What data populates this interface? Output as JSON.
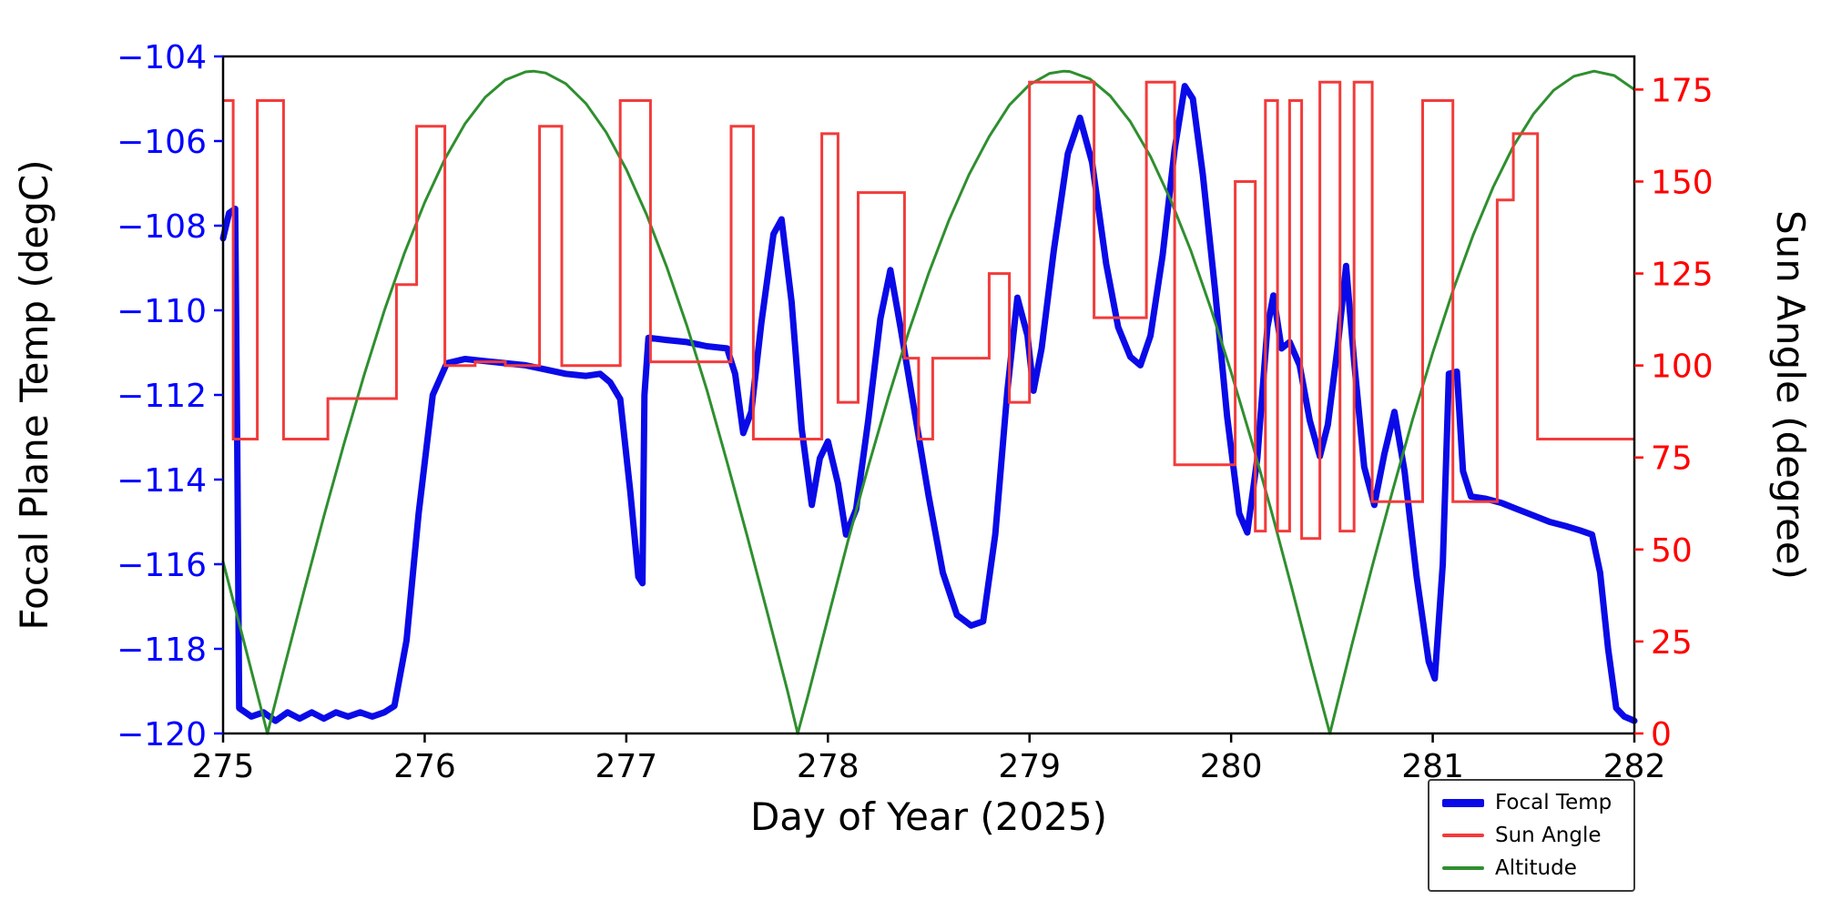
{
  "chart_data": {
    "type": "line",
    "xlabel": "Day of Year (2025)",
    "ylabel_left": "Focal Plane Temp (degC)",
    "ylabel_right": "Sun Angle (degree)",
    "xlim": [
      275,
      282
    ],
    "xticks": [
      275,
      276,
      277,
      278,
      279,
      280,
      281,
      282
    ],
    "ylim_left": [
      -120,
      -104
    ],
    "yticks_left": [
      -120,
      -118,
      -116,
      -114,
      -112,
      -110,
      -108,
      -106,
      -104
    ],
    "ylim_right": [
      0,
      184
    ],
    "yticks_right": [
      0,
      25,
      50,
      75,
      100,
      125,
      150,
      175
    ],
    "axis_colors": {
      "left": "#0000ff",
      "right": "#ff0000",
      "x": "#000000",
      "spine": "#000000"
    },
    "grid": false,
    "legend_position": "lower right, below axes",
    "series": [
      {
        "name": "Focal Temp",
        "axis": "left",
        "color": "#0a0ae8",
        "width": 7,
        "style": "line",
        "points": [
          [
            275.0,
            -108.3
          ],
          [
            275.03,
            -107.7
          ],
          [
            275.06,
            -107.6
          ],
          [
            275.07,
            -113.0
          ],
          [
            275.08,
            -119.4
          ],
          [
            275.14,
            -119.6
          ],
          [
            275.2,
            -119.5
          ],
          [
            275.26,
            -119.7
          ],
          [
            275.32,
            -119.5
          ],
          [
            275.38,
            -119.65
          ],
          [
            275.44,
            -119.5
          ],
          [
            275.5,
            -119.65
          ],
          [
            275.56,
            -119.5
          ],
          [
            275.62,
            -119.6
          ],
          [
            275.68,
            -119.5
          ],
          [
            275.74,
            -119.6
          ],
          [
            275.8,
            -119.5
          ],
          [
            275.85,
            -119.35
          ],
          [
            275.91,
            -117.8
          ],
          [
            275.97,
            -114.8
          ],
          [
            276.04,
            -112.0
          ],
          [
            276.11,
            -111.25
          ],
          [
            276.2,
            -111.15
          ],
          [
            276.3,
            -111.2
          ],
          [
            276.4,
            -111.25
          ],
          [
            276.5,
            -111.3
          ],
          [
            276.6,
            -111.4
          ],
          [
            276.7,
            -111.5
          ],
          [
            276.8,
            -111.55
          ],
          [
            276.87,
            -111.5
          ],
          [
            276.92,
            -111.7
          ],
          [
            276.97,
            -112.1
          ],
          [
            277.02,
            -114.3
          ],
          [
            277.06,
            -116.3
          ],
          [
            277.08,
            -116.45
          ],
          [
            277.09,
            -112.0
          ],
          [
            277.11,
            -110.65
          ],
          [
            277.2,
            -110.7
          ],
          [
            277.3,
            -110.75
          ],
          [
            277.4,
            -110.85
          ],
          [
            277.5,
            -110.9
          ],
          [
            277.54,
            -111.5
          ],
          [
            277.58,
            -112.9
          ],
          [
            277.62,
            -112.4
          ],
          [
            277.67,
            -110.3
          ],
          [
            277.73,
            -108.2
          ],
          [
            277.77,
            -107.85
          ],
          [
            277.82,
            -109.8
          ],
          [
            277.87,
            -112.8
          ],
          [
            277.92,
            -114.6
          ],
          [
            277.96,
            -113.5
          ],
          [
            278.0,
            -113.1
          ],
          [
            278.05,
            -114.1
          ],
          [
            278.09,
            -115.3
          ],
          [
            278.14,
            -114.7
          ],
          [
            278.2,
            -112.6
          ],
          [
            278.26,
            -110.2
          ],
          [
            278.31,
            -109.05
          ],
          [
            278.36,
            -110.4
          ],
          [
            278.43,
            -112.4
          ],
          [
            278.5,
            -114.4
          ],
          [
            278.57,
            -116.2
          ],
          [
            278.64,
            -117.2
          ],
          [
            278.71,
            -117.45
          ],
          [
            278.77,
            -117.35
          ],
          [
            278.83,
            -115.3
          ],
          [
            278.89,
            -111.9
          ],
          [
            278.94,
            -109.7
          ],
          [
            278.99,
            -110.6
          ],
          [
            279.02,
            -111.9
          ],
          [
            279.06,
            -110.9
          ],
          [
            279.12,
            -108.6
          ],
          [
            279.19,
            -106.3
          ],
          [
            279.25,
            -105.45
          ],
          [
            279.31,
            -106.5
          ],
          [
            279.38,
            -108.9
          ],
          [
            279.44,
            -110.4
          ],
          [
            279.5,
            -111.1
          ],
          [
            279.55,
            -111.3
          ],
          [
            279.6,
            -110.6
          ],
          [
            279.66,
            -108.7
          ],
          [
            279.72,
            -106.2
          ],
          [
            279.77,
            -104.7
          ],
          [
            279.81,
            -105.0
          ],
          [
            279.86,
            -106.8
          ],
          [
            279.92,
            -109.5
          ],
          [
            279.98,
            -112.5
          ],
          [
            280.04,
            -114.8
          ],
          [
            280.08,
            -115.25
          ],
          [
            280.13,
            -113.5
          ],
          [
            280.18,
            -110.4
          ],
          [
            280.21,
            -109.65
          ],
          [
            280.25,
            -110.9
          ],
          [
            280.29,
            -110.75
          ],
          [
            280.34,
            -111.3
          ],
          [
            280.39,
            -112.6
          ],
          [
            280.44,
            -113.45
          ],
          [
            280.48,
            -112.7
          ],
          [
            280.53,
            -110.8
          ],
          [
            280.57,
            -108.95
          ],
          [
            280.61,
            -111.2
          ],
          [
            280.66,
            -113.7
          ],
          [
            280.71,
            -114.6
          ],
          [
            280.76,
            -113.4
          ],
          [
            280.81,
            -112.4
          ],
          [
            280.86,
            -113.8
          ],
          [
            280.92,
            -116.3
          ],
          [
            280.98,
            -118.3
          ],
          [
            281.01,
            -118.7
          ],
          [
            281.05,
            -116.0
          ],
          [
            281.08,
            -111.5
          ],
          [
            281.12,
            -111.45
          ],
          [
            281.15,
            -113.8
          ],
          [
            281.19,
            -114.4
          ],
          [
            281.26,
            -114.45
          ],
          [
            281.34,
            -114.55
          ],
          [
            281.42,
            -114.7
          ],
          [
            281.5,
            -114.85
          ],
          [
            281.58,
            -115.0
          ],
          [
            281.66,
            -115.1
          ],
          [
            281.73,
            -115.2
          ],
          [
            281.79,
            -115.3
          ],
          [
            281.83,
            -116.2
          ],
          [
            281.87,
            -118.0
          ],
          [
            281.91,
            -119.4
          ],
          [
            281.95,
            -119.6
          ],
          [
            282.0,
            -119.7
          ]
        ]
      },
      {
        "name": "Sun Angle",
        "axis": "right",
        "color": "#f23b3b",
        "width": 3,
        "style": "step",
        "points": [
          [
            275.0,
            172
          ],
          [
            275.05,
            80
          ],
          [
            275.17,
            172
          ],
          [
            275.3,
            80
          ],
          [
            275.52,
            91
          ],
          [
            275.86,
            122
          ],
          [
            275.96,
            165
          ],
          [
            276.1,
            100
          ],
          [
            276.25,
            101
          ],
          [
            276.4,
            100
          ],
          [
            276.57,
            165
          ],
          [
            276.68,
            100
          ],
          [
            276.97,
            172
          ],
          [
            277.12,
            101
          ],
          [
            277.52,
            165
          ],
          [
            277.63,
            80
          ],
          [
            277.97,
            163
          ],
          [
            278.05,
            90
          ],
          [
            278.15,
            147
          ],
          [
            278.38,
            102
          ],
          [
            278.45,
            80
          ],
          [
            278.52,
            102
          ],
          [
            278.8,
            125
          ],
          [
            278.9,
            90
          ],
          [
            279.0,
            177
          ],
          [
            279.32,
            113
          ],
          [
            279.58,
            177
          ],
          [
            279.72,
            73
          ],
          [
            280.02,
            150
          ],
          [
            280.12,
            55
          ],
          [
            280.17,
            172
          ],
          [
            280.23,
            55
          ],
          [
            280.29,
            172
          ],
          [
            280.35,
            53
          ],
          [
            280.44,
            177
          ],
          [
            280.54,
            55
          ],
          [
            280.61,
            177
          ],
          [
            280.7,
            63
          ],
          [
            280.95,
            172
          ],
          [
            281.1,
            63
          ],
          [
            281.32,
            145
          ],
          [
            281.4,
            163
          ],
          [
            281.52,
            80
          ],
          [
            282.0,
            80
          ]
        ]
      },
      {
        "name": "Altitude",
        "axis": "right",
        "color": "#2f8f2f",
        "width": 3,
        "style": "line",
        "points": [
          [
            275.0,
            46.7
          ],
          [
            275.1,
            25.7
          ],
          [
            275.2,
            4.3
          ],
          [
            275.22,
            0
          ],
          [
            275.3,
            17.2
          ],
          [
            275.4,
            38.4
          ],
          [
            275.5,
            59.0
          ],
          [
            275.6,
            78.8
          ],
          [
            275.7,
            97.5
          ],
          [
            275.8,
            114.9
          ],
          [
            275.9,
            130.6
          ],
          [
            276.0,
            144.3
          ],
          [
            276.1,
            156.1
          ],
          [
            276.2,
            165.7
          ],
          [
            276.3,
            172.9
          ],
          [
            276.4,
            177.6
          ],
          [
            276.5,
            179.8
          ],
          [
            276.54,
            180
          ],
          [
            276.6,
            179.5
          ],
          [
            276.7,
            176.6
          ],
          [
            276.8,
            171.2
          ],
          [
            276.9,
            163.4
          ],
          [
            277.0,
            153.3
          ],
          [
            277.1,
            141.1
          ],
          [
            277.2,
            126.9
          ],
          [
            277.3,
            110.9
          ],
          [
            277.4,
            93.3
          ],
          [
            277.5,
            73.7
          ],
          [
            277.6,
            53.6
          ],
          [
            277.7,
            32.7
          ],
          [
            277.8,
            11.5
          ],
          [
            277.85,
            0
          ],
          [
            277.9,
            10.0
          ],
          [
            278.0,
            31.3
          ],
          [
            278.1,
            52.4
          ],
          [
            278.2,
            72.5
          ],
          [
            278.3,
            91.4
          ],
          [
            278.4,
            109.1
          ],
          [
            278.5,
            125.1
          ],
          [
            278.6,
            139.4
          ],
          [
            278.7,
            151.9
          ],
          [
            278.8,
            162.2
          ],
          [
            278.9,
            170.8
          ],
          [
            279.0,
            176.3
          ],
          [
            279.1,
            179.4
          ],
          [
            279.17,
            180
          ],
          [
            279.2,
            179.9
          ],
          [
            279.3,
            177.9
          ],
          [
            279.4,
            173.3
          ],
          [
            279.5,
            166.3
          ],
          [
            279.6,
            156.8
          ],
          [
            279.7,
            145.0
          ],
          [
            279.8,
            131.2
          ],
          [
            279.9,
            115.4
          ],
          [
            280.0,
            98.2
          ],
          [
            280.1,
            79.8
          ],
          [
            280.2,
            60.4
          ],
          [
            280.3,
            39.7
          ],
          [
            280.4,
            18.5
          ],
          [
            280.49,
            0
          ],
          [
            280.6,
            24.3
          ],
          [
            280.7,
            45.4
          ],
          [
            280.8,
            65.8
          ],
          [
            280.9,
            85.3
          ],
          [
            281.0,
            103.5
          ],
          [
            281.1,
            120.3
          ],
          [
            281.2,
            135.4
          ],
          [
            281.3,
            148.5
          ],
          [
            281.4,
            159.6
          ],
          [
            281.5,
            168.4
          ],
          [
            281.6,
            174.8
          ],
          [
            281.7,
            178.6
          ],
          [
            281.8,
            180.0
          ],
          [
            281.9,
            178.8
          ],
          [
            282.0,
            175.0
          ]
        ]
      }
    ]
  }
}
